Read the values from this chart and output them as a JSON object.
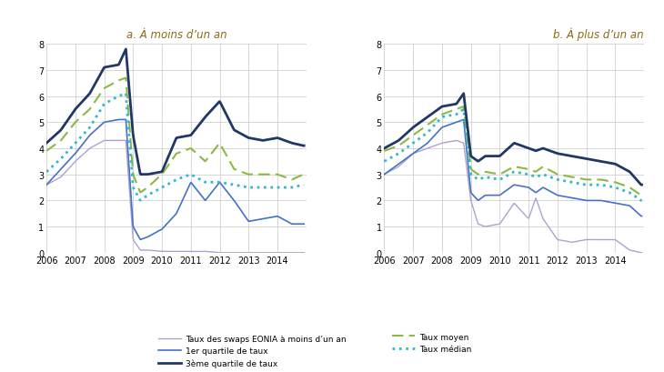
{
  "title_a": "a. À moins d’un an",
  "title_b": "b. À plus d’un an",
  "title_color": "#8B6914",
  "xlim": [
    2006.0,
    2015.0
  ],
  "ylim": [
    0,
    8
  ],
  "yticks": [
    0,
    1,
    2,
    3,
    4,
    5,
    6,
    7,
    8
  ],
  "xticks": [
    2006,
    2007,
    2008,
    2009,
    2010,
    2011,
    2012,
    2013,
    2014
  ],
  "legend": [
    {
      "label": "Taux des swaps EONIA à moins d’un an",
      "color": "#b0a0cc",
      "ls": "solid",
      "lw": 1.0
    },
    {
      "label": "Taux moyen",
      "color": "#8db843",
      "ls": "dashed",
      "lw": 1.5
    },
    {
      "label": "1er quartile de taux",
      "color": "#4472c4",
      "ls": "solid",
      "lw": 1.2
    },
    {
      "label": "Taux médian",
      "color": "#31b8cb",
      "ls": "dotted",
      "lw": 2.0
    },
    {
      "label": "3ème quartile de taux",
      "color": "#1f3864",
      "ls": "solid",
      "lw": 2.0
    }
  ],
  "panel_a": {
    "x_knots": [
      2006.0,
      2006.5,
      2007.0,
      2007.5,
      2008.0,
      2008.5,
      2008.75,
      2009.0,
      2009.25,
      2009.5,
      2010.0,
      2010.5,
      2011.0,
      2011.5,
      2012.0,
      2012.5,
      2013.0,
      2013.5,
      2014.0,
      2014.5,
      2014.9
    ],
    "eonia": [
      2.6,
      2.9,
      3.5,
      4.0,
      4.3,
      4.3,
      4.3,
      0.5,
      0.1,
      0.1,
      0.05,
      0.05,
      0.05,
      0.05,
      0.0,
      0.0,
      0.0,
      0.0,
      0.0,
      0.0,
      0.0
    ],
    "q1": [
      2.6,
      3.2,
      3.8,
      4.5,
      5.0,
      5.1,
      5.1,
      1.0,
      0.5,
      0.6,
      0.9,
      1.5,
      2.7,
      2.0,
      2.7,
      2.0,
      1.2,
      1.3,
      1.4,
      1.1,
      1.1
    ],
    "median": [
      3.1,
      3.6,
      4.2,
      4.8,
      5.7,
      6.0,
      6.1,
      2.5,
      2.0,
      2.2,
      2.5,
      2.8,
      3.0,
      2.7,
      2.7,
      2.6,
      2.5,
      2.5,
      2.5,
      2.5,
      2.6
    ],
    "mean": [
      3.9,
      4.3,
      5.0,
      5.5,
      6.3,
      6.6,
      6.7,
      3.0,
      2.3,
      2.5,
      3.0,
      3.8,
      4.0,
      3.5,
      4.2,
      3.2,
      3.0,
      3.0,
      3.0,
      2.8,
      3.0
    ],
    "q3": [
      4.2,
      4.7,
      5.5,
      6.1,
      7.1,
      7.2,
      7.8,
      4.5,
      3.0,
      3.0,
      3.1,
      4.4,
      4.5,
      5.2,
      5.8,
      4.7,
      4.4,
      4.3,
      4.4,
      4.2,
      4.1
    ]
  },
  "panel_b": {
    "x_knots": [
      2006.0,
      2006.5,
      2007.0,
      2007.5,
      2008.0,
      2008.5,
      2008.75,
      2009.0,
      2009.25,
      2009.5,
      2010.0,
      2010.5,
      2011.0,
      2011.25,
      2011.5,
      2012.0,
      2012.5,
      2013.0,
      2013.5,
      2014.0,
      2014.5,
      2014.9
    ],
    "eonia": [
      3.0,
      3.3,
      3.8,
      4.0,
      4.2,
      4.3,
      4.2,
      2.0,
      1.1,
      1.0,
      1.1,
      1.9,
      1.3,
      2.1,
      1.3,
      0.5,
      0.4,
      0.5,
      0.5,
      0.5,
      0.1,
      0.0
    ],
    "q1": [
      3.0,
      3.4,
      3.8,
      4.2,
      4.8,
      5.0,
      5.1,
      2.3,
      2.0,
      2.2,
      2.2,
      2.6,
      2.5,
      2.3,
      2.5,
      2.2,
      2.1,
      2.0,
      2.0,
      1.9,
      1.8,
      1.4
    ],
    "median": [
      3.5,
      3.8,
      4.2,
      4.6,
      5.2,
      5.3,
      5.5,
      3.0,
      2.8,
      2.9,
      2.8,
      3.1,
      3.0,
      2.9,
      3.0,
      2.8,
      2.7,
      2.6,
      2.6,
      2.5,
      2.3,
      2.0
    ],
    "mean": [
      3.9,
      4.1,
      4.5,
      4.9,
      5.3,
      5.5,
      5.6,
      3.2,
      3.0,
      3.1,
      3.0,
      3.3,
      3.2,
      3.1,
      3.3,
      3.0,
      2.9,
      2.8,
      2.8,
      2.7,
      2.5,
      2.2
    ],
    "q3": [
      4.0,
      4.3,
      4.8,
      5.2,
      5.6,
      5.7,
      6.1,
      3.7,
      3.5,
      3.7,
      3.7,
      4.2,
      4.0,
      3.9,
      4.0,
      3.8,
      3.7,
      3.6,
      3.5,
      3.4,
      3.1,
      2.6
    ]
  }
}
